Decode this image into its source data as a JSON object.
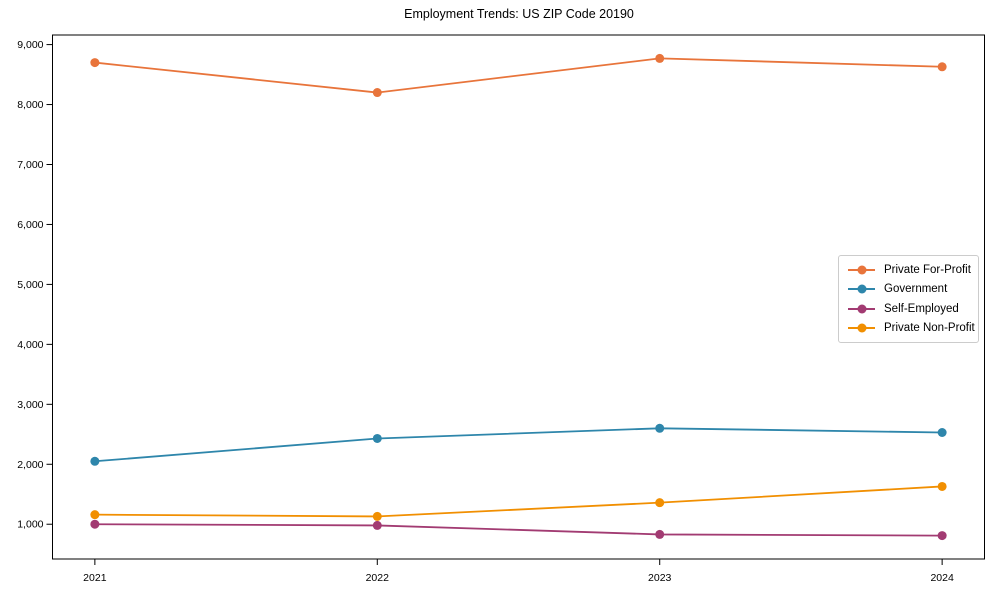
{
  "chart_data": {
    "type": "line",
    "title": "Employment Trends: US ZIP Code 20190",
    "x": [
      2021,
      2022,
      2023,
      2024
    ],
    "x_tick_labels": [
      "2021",
      "2022",
      "2023",
      "2024"
    ],
    "series": [
      {
        "name": "Private For-Profit",
        "color": "#E8743B",
        "values": [
          8700,
          8200,
          8770,
          8630
        ]
      },
      {
        "name": "Government",
        "color": "#2E86AB",
        "values": [
          2050,
          2430,
          2600,
          2530
        ]
      },
      {
        "name": "Self-Employed",
        "color": "#A23B72",
        "values": [
          1000,
          980,
          830,
          810
        ]
      },
      {
        "name": "Private Non-Profit",
        "color": "#F18F01",
        "values": [
          1160,
          1130,
          1360,
          1630
        ]
      }
    ],
    "yticks": [
      1000,
      2000,
      3000,
      4000,
      5000,
      6000,
      7000,
      8000,
      9000
    ],
    "ytick_labels": [
      "1,000",
      "2,000",
      "3,000",
      "4,000",
      "5,000",
      "6,000",
      "7,000",
      "8,000",
      "9,000"
    ],
    "ylim": [
      420,
      9160
    ],
    "xlim": [
      2020.85,
      2024.15
    ],
    "xlabel": "",
    "ylabel": "",
    "grid": false,
    "legend_position": "center right",
    "axis_color": "#000000",
    "background_color": "#ffffff",
    "marker": "circle",
    "marker_size": 9,
    "line_width": 1.8
  }
}
